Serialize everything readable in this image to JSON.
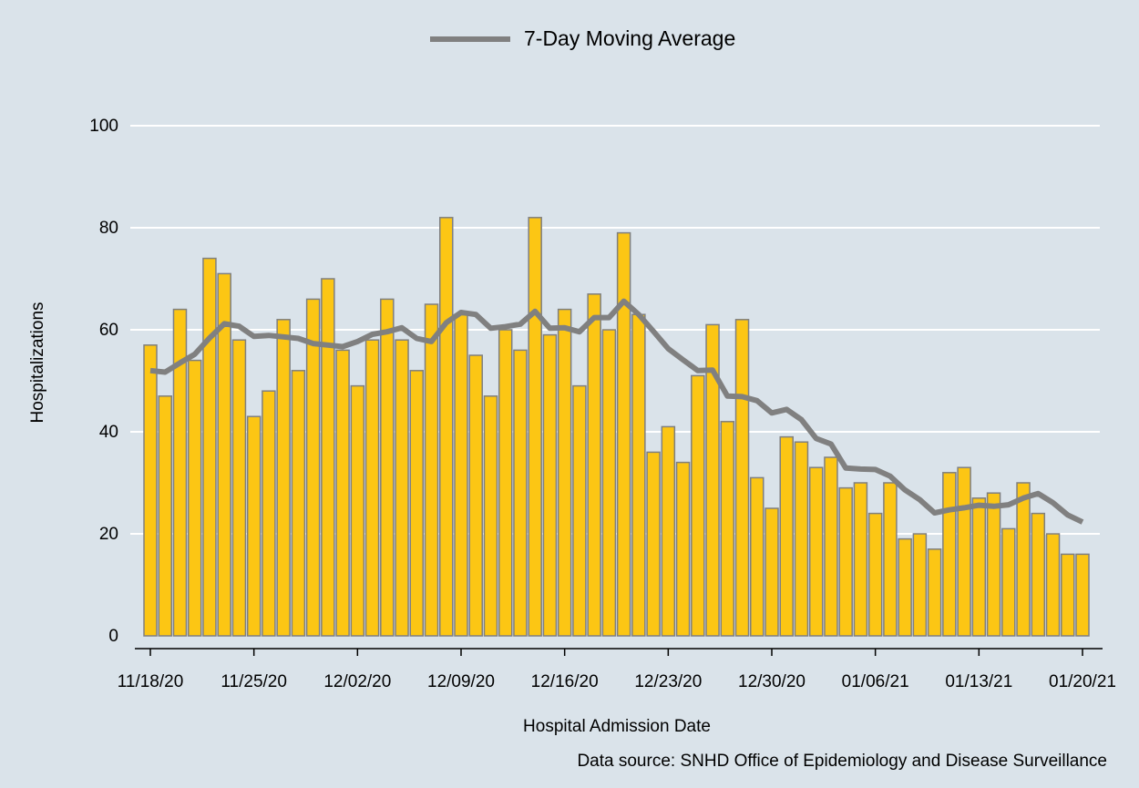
{
  "chart_data": {
    "type": "combo",
    "x_label": "Hospital Admission Date",
    "y_label": "Hospitalizations",
    "source": "Data source: SNHD Office of Epidemiology and Disease Surveillance",
    "categories": [
      "11/18/20",
      null,
      null,
      null,
      null,
      null,
      null,
      "11/25/20",
      null,
      null,
      null,
      null,
      null,
      null,
      "12/02/20",
      null,
      null,
      null,
      null,
      null,
      null,
      "12/09/20",
      null,
      null,
      null,
      null,
      null,
      null,
      "12/16/20",
      null,
      null,
      null,
      null,
      null,
      null,
      "12/23/20",
      null,
      null,
      null,
      null,
      null,
      null,
      "12/30/20",
      null,
      null,
      null,
      null,
      null,
      null,
      "01/06/21",
      null,
      null,
      null,
      null,
      null,
      null,
      "01/13/21",
      null,
      null,
      null,
      null,
      null,
      null,
      "01/20/21"
    ],
    "series": [
      {
        "type": "bar",
        "color": "#fcc614",
        "values": [
          57,
          47,
          64,
          54,
          74,
          71,
          58,
          43,
          48,
          62,
          52,
          66,
          70,
          56,
          49,
          58,
          66,
          58,
          52,
          65,
          82,
          63,
          55,
          47,
          60,
          56,
          82,
          59,
          64,
          49,
          67,
          60,
          79,
          63,
          36,
          41,
          34,
          51,
          61,
          42,
          62,
          31,
          25,
          39,
          38,
          33,
          35,
          29,
          30,
          24,
          30,
          19,
          20,
          17,
          32,
          33,
          27,
          28,
          21,
          30,
          24,
          20,
          16,
          16
        ]
      },
      {
        "type": "line",
        "name": "7-Day Moving Average",
        "color": "#808080",
        "values": [
          52,
          51.7,
          53.5,
          55.2,
          58.4,
          61.2,
          60.7,
          58.7,
          58.9,
          58.6,
          58.3,
          57.3,
          57,
          56.7,
          57.7,
          59.1,
          59.6,
          60.4,
          58.3,
          57.7,
          61.4,
          63.4,
          63,
          60.3,
          60.6,
          61.1,
          63.6,
          60.3,
          60.4,
          59.6,
          62.4,
          62.4,
          65.6,
          63,
          59.7,
          56.3,
          54.1,
          52,
          52.1,
          47,
          46.9,
          46.1,
          43.7,
          44.4,
          42.4,
          38.7,
          37.6,
          32.9,
          32.7,
          32.6,
          31.3,
          28.6,
          26.7,
          24.1,
          24.7,
          25.1,
          25.6,
          25.4,
          25.7,
          27,
          27.9,
          26.1,
          23.7,
          22.3
        ]
      }
    ],
    "ylim": [
      -2.5,
      110
    ],
    "yticks": [
      0,
      20,
      40,
      60,
      80,
      100
    ],
    "grid": true
  }
}
